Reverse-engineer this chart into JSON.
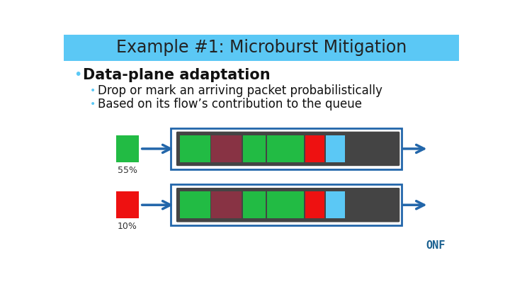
{
  "title": "Example #1: Microburst Mitigation",
  "title_bg": "#5BC8F5",
  "title_color": "#222222",
  "bg_color": "#FFFFFF",
  "bullet1": "Data-plane adaptation",
  "bullet2": "Drop or mark an arriving packet probabilistically",
  "bullet3": "Based on its flow’s contribution to the queue",
  "label1": "55%",
  "label2": "10%",
  "green": "#22BB44",
  "red": "#EE1111",
  "dark_red": "#883344",
  "cyan": "#5BC8F5",
  "queue_bg": "#444444",
  "arrow_color": "#2266AA",
  "border_color": "#2266AA",
  "bullet_color": "#5BC8F5",
  "text_color": "#111111",
  "onf_color": "#1A6090"
}
